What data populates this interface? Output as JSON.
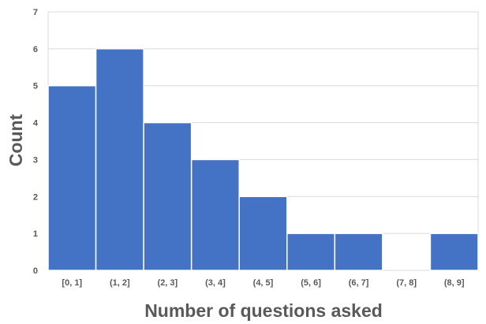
{
  "chart_data": {
    "type": "bar",
    "title": "",
    "xlabel": "Number of questions asked",
    "ylabel": "Count",
    "categories": [
      "[0, 1]",
      "(1, 2]",
      "(2, 3]",
      "(3, 4]",
      "(4, 5]",
      "(5, 6]",
      "(6, 7]",
      "(7, 8]",
      "(8, 9]"
    ],
    "values": [
      5,
      6,
      4,
      3,
      2,
      1,
      1,
      0,
      1
    ],
    "ylim": [
      0,
      7
    ],
    "yticks": [
      "0",
      "1",
      "2",
      "3",
      "4",
      "5",
      "6",
      "7"
    ],
    "grid": true,
    "legend": "none",
    "bar_color": "#4472C4",
    "grid_color": "#D9D9D9",
    "text_color": "#595959"
  }
}
